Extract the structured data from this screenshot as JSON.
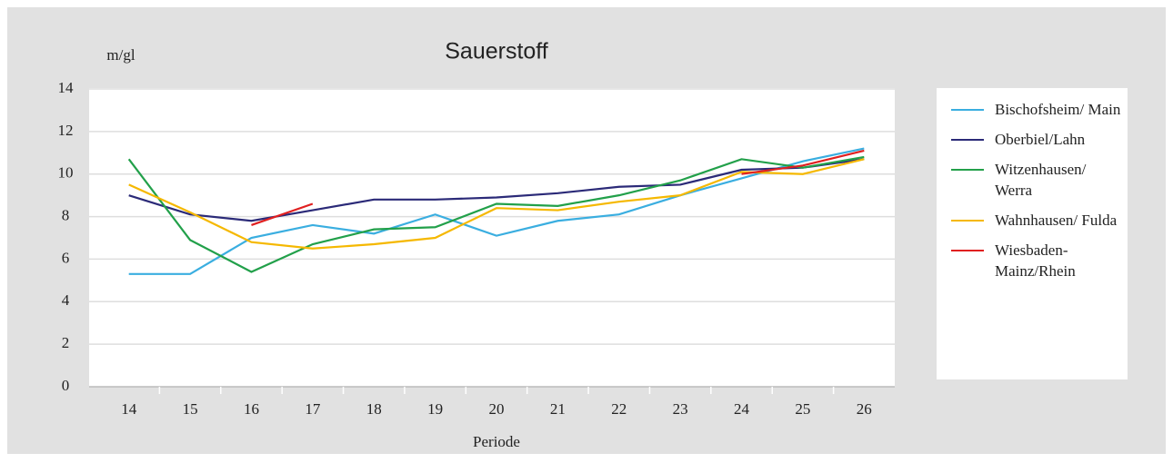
{
  "chart_data": {
    "type": "line",
    "title": "Sauerstoff",
    "y_label": "m/gl",
    "x_label": "Periode",
    "categories": [
      "14",
      "15",
      "16",
      "17",
      "18",
      "19",
      "20",
      "21",
      "22",
      "23",
      "24",
      "25",
      "26"
    ],
    "ylim": [
      0,
      14
    ],
    "yticks": [
      0,
      2,
      4,
      6,
      8,
      10,
      12,
      14
    ],
    "grid": true,
    "legend": "right",
    "series": [
      {
        "name": "Bischofsheim/ Main",
        "color": "#3aaee0",
        "values": [
          5.3,
          5.3,
          7.0,
          7.6,
          7.2,
          8.1,
          7.1,
          7.8,
          8.1,
          9.0,
          9.8,
          10.6,
          11.2
        ]
      },
      {
        "name": "Oberbiel/Lahn",
        "color": "#2b2a78",
        "values": [
          9.0,
          8.1,
          7.8,
          8.3,
          8.8,
          8.8,
          8.9,
          9.1,
          9.4,
          9.5,
          10.2,
          10.3,
          10.7
        ]
      },
      {
        "name": "Witzenhausen/ Werra",
        "color": "#22a04a",
        "values": [
          10.7,
          6.9,
          5.4,
          6.7,
          7.4,
          7.5,
          8.6,
          8.5,
          9.0,
          9.7,
          10.7,
          10.3,
          10.8
        ]
      },
      {
        "name": "Wahnhausen/ Fulda",
        "color": "#f5b800",
        "values": [
          9.5,
          8.2,
          6.8,
          6.5,
          6.7,
          7.0,
          8.4,
          8.3,
          8.7,
          9.0,
          10.1,
          10.0,
          10.7
        ]
      },
      {
        "name": "Wiesbaden-Mainz/Rhein",
        "color": "#e02020",
        "values": [
          null,
          null,
          7.6,
          8.6,
          null,
          null,
          null,
          null,
          null,
          null,
          10.0,
          10.4,
          11.1
        ]
      }
    ]
  }
}
